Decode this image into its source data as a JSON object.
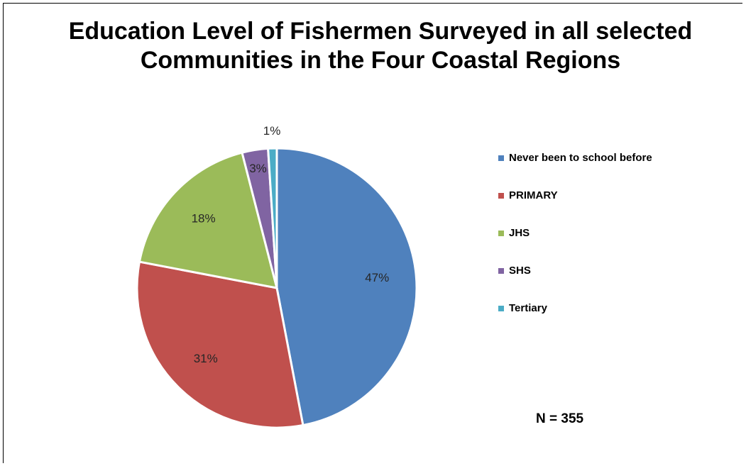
{
  "chart_data": {
    "type": "pie",
    "title": "Education Level of Fishermen Surveyed in all selected Communities in the Four Coastal Regions",
    "categories": [
      "Never been to school before",
      "PRIMARY",
      "JHS",
      "SHS",
      "Tertiary"
    ],
    "values": [
      47,
      31,
      18,
      3,
      1
    ],
    "value_labels": [
      "47%",
      "31%",
      "18%",
      "3%",
      "1%"
    ],
    "colors": [
      "#4F81BD",
      "#C0504D",
      "#9BBB59",
      "#8064A2",
      "#4BACC6"
    ],
    "legend_position": "right",
    "note": "N = 355"
  }
}
